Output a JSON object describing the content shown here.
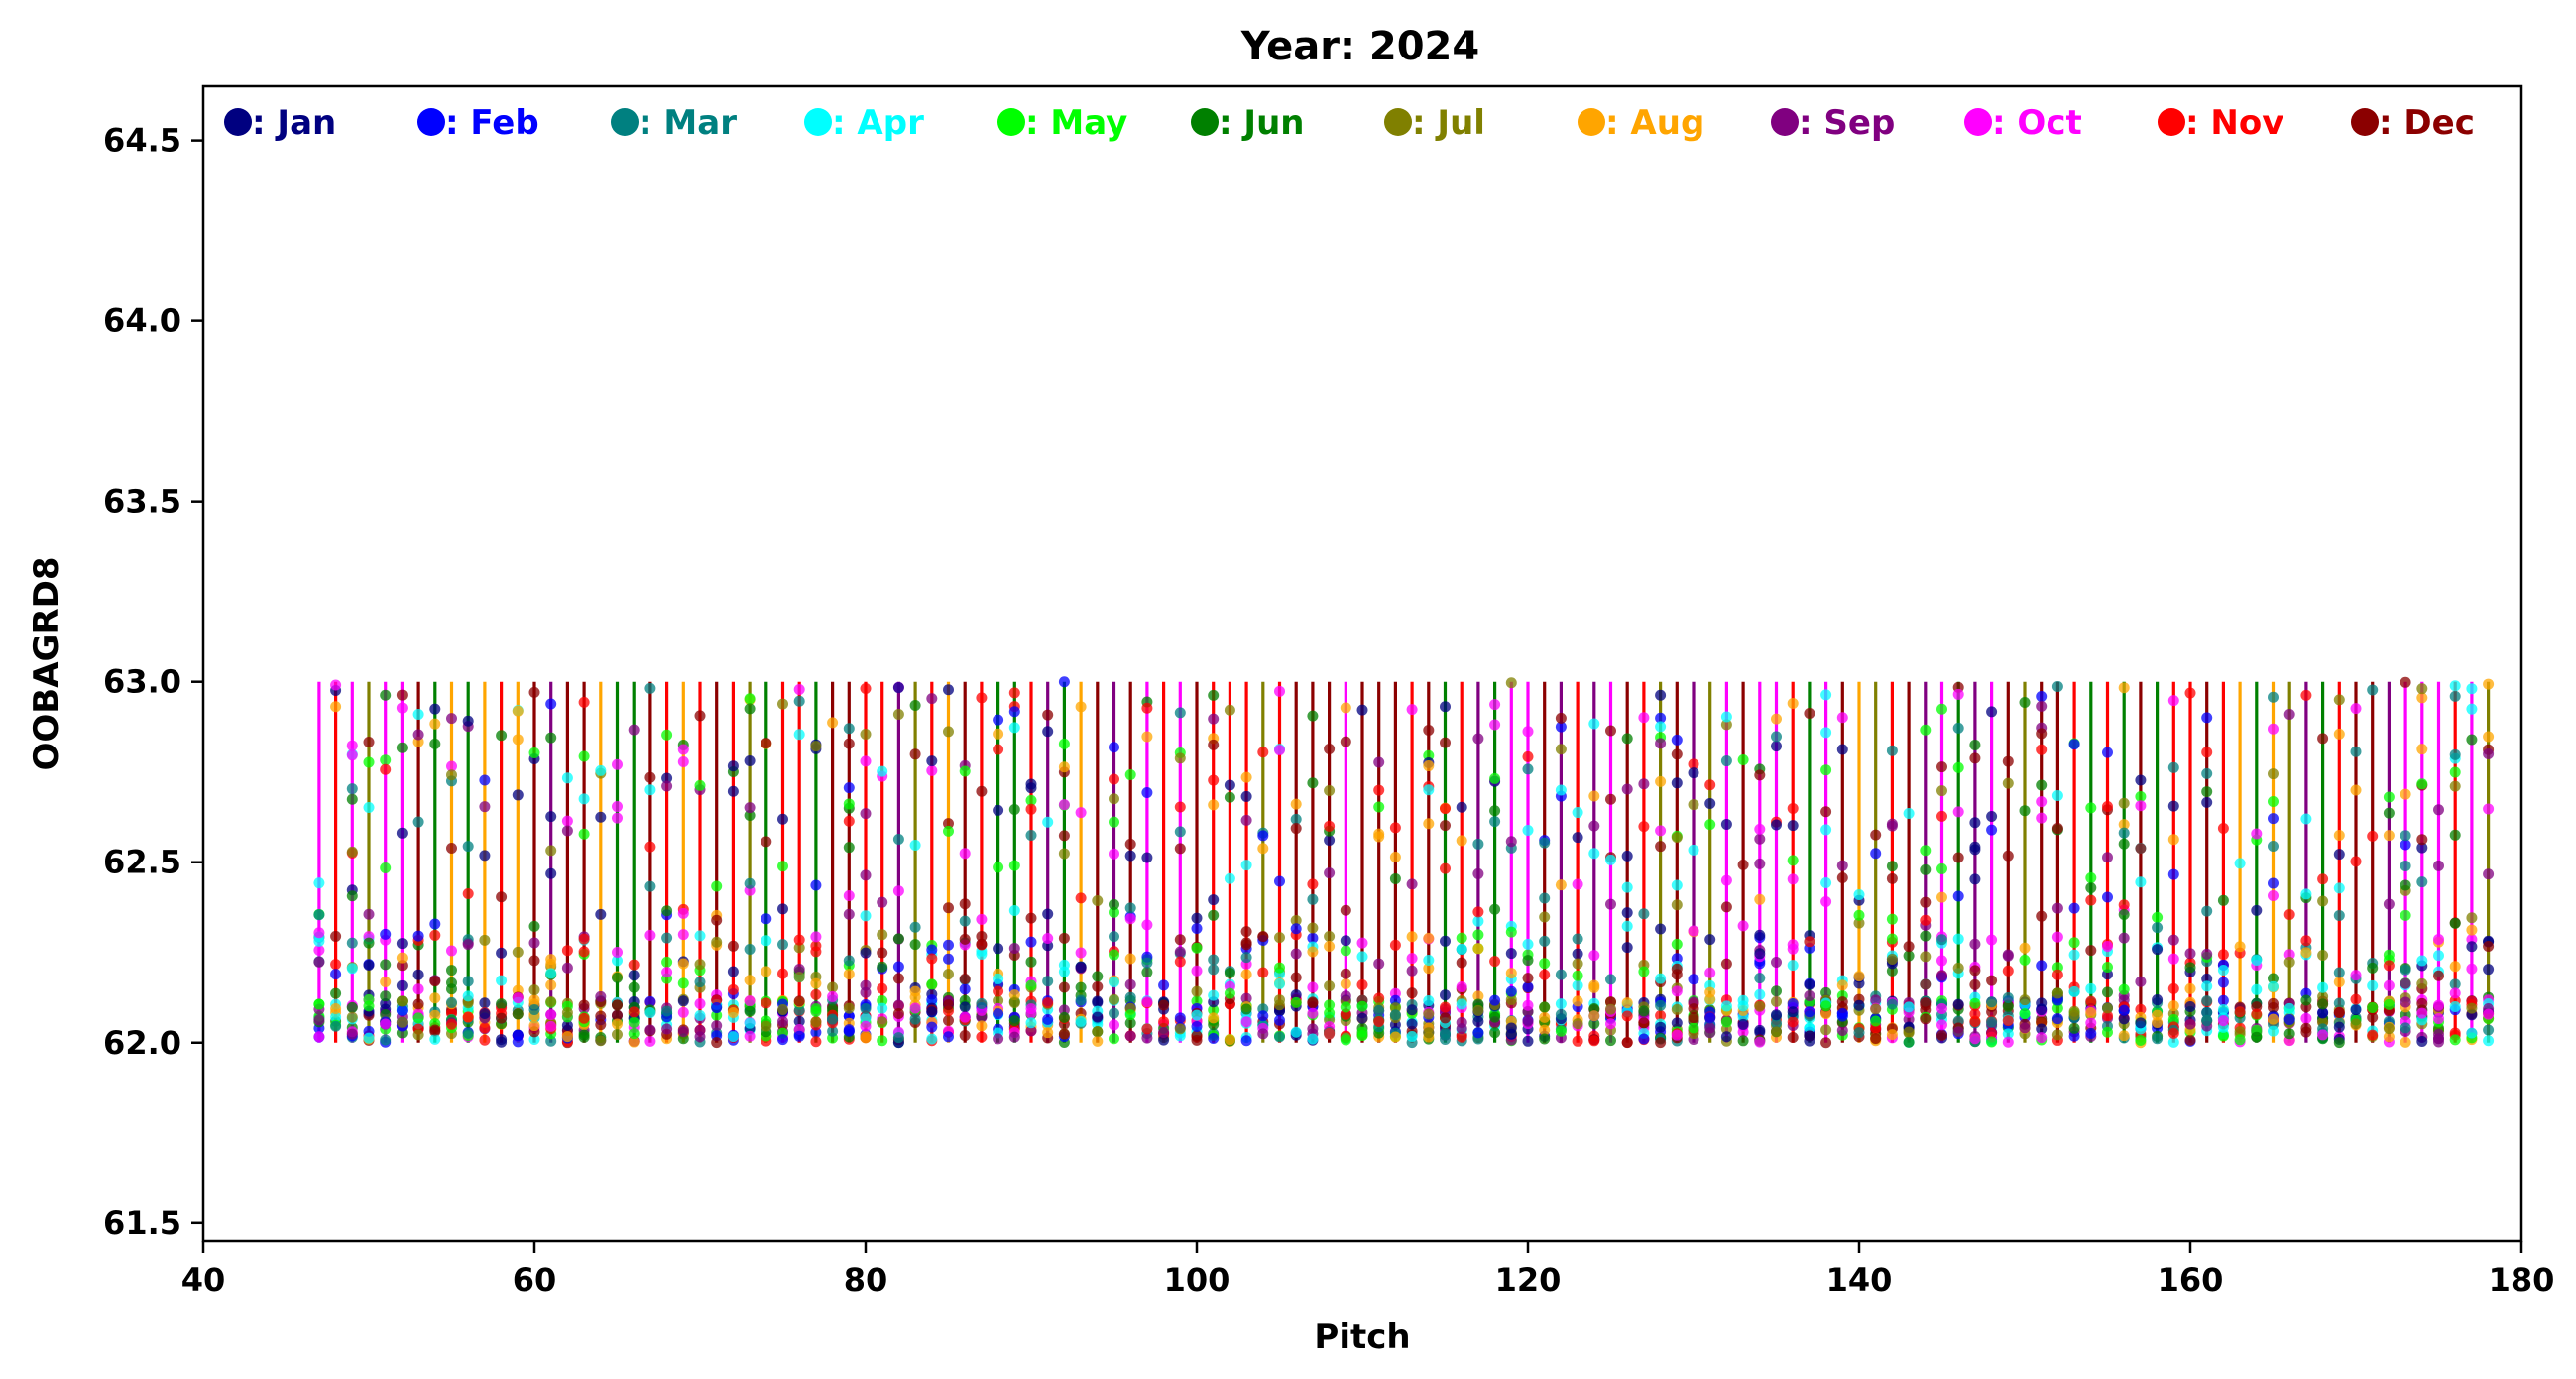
{
  "chart_data": {
    "type": "scatter",
    "title": "Year: 2024",
    "xlabel": "Pitch",
    "ylabel": "OOBAGRD8",
    "xlim": [
      40,
      180
    ],
    "ylim": [
      61.45,
      64.65
    ],
    "xticks": [
      40,
      60,
      80,
      100,
      120,
      140,
      160,
      180
    ],
    "xtick_labels": [
      "40",
      "60",
      "80",
      "100",
      "120",
      "140",
      "160",
      "180"
    ],
    "yticks": [
      61.5,
      62.0,
      62.5,
      63.0,
      63.5,
      64.0,
      64.5
    ],
    "ytick_labels": [
      "61.5",
      "62.0",
      "62.5",
      "63.0",
      "63.5",
      "64.0",
      "64.5"
    ],
    "grid": false,
    "legend_position": "top, single row inside plot",
    "legend": [
      {
        "label": ": Jan",
        "color": "#000080"
      },
      {
        "label": ": Feb",
        "color": "#0000ff"
      },
      {
        "label": ": Mar",
        "color": "#008080"
      },
      {
        "label": ": Apr",
        "color": "#00ffff"
      },
      {
        "label": ": May",
        "color": "#00ff00"
      },
      {
        "label": ": Jun",
        "color": "#008000"
      },
      {
        "label": ": Jul",
        "color": "#808000"
      },
      {
        "label": ": Aug",
        "color": "#ffa500"
      },
      {
        "label": ": Sep",
        "color": "#800080"
      },
      {
        "label": ": Oct",
        "color": "#ff00ff"
      },
      {
        "label": ": Nov",
        "color": "#ff0000"
      },
      {
        "label": ": Dec",
        "color": "#8b0000"
      }
    ],
    "vertical_range_lines": {
      "y_range": [
        62.0,
        63.0
      ],
      "x_range": [
        47,
        178
      ],
      "x_step": 1
    },
    "series_note": "Dense per-pitch markers for every month; values range 62.0–63.0 on each integer pitch from 47 to 178"
  }
}
